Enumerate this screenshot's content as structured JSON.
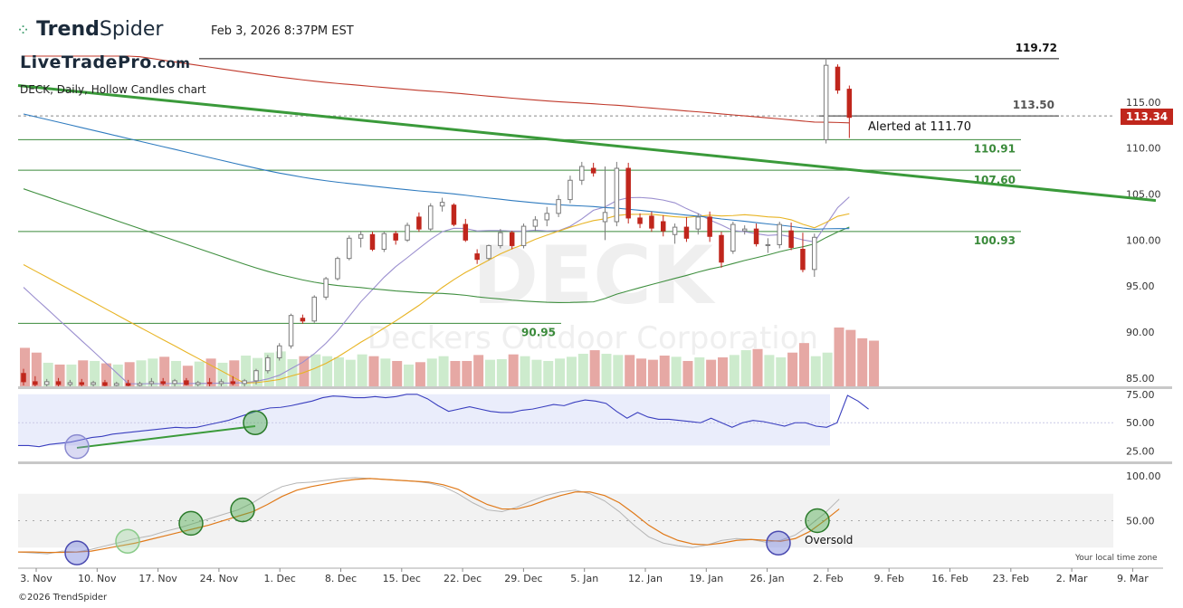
{
  "header": {
    "brand_prefix": "Trend",
    "brand_suffix": "Spider",
    "watermark_brand": "LiveTradePro",
    "watermark_domain": ".com",
    "datetime": "Feb 3, 2026 8:37PM EST",
    "chart_title": "DECK, Daily, Hollow Candles chart",
    "copyright": "©2026 TrendSpider",
    "local_time_note": "Your local time zone"
  },
  "annotations": {
    "alert_text": "Alerted at 111.70",
    "oversold_text": "Oversold",
    "current_price": "113.34",
    "current_price_color": "#c0261c"
  },
  "chart_data": {
    "type": "candlestick",
    "symbol": "DECK",
    "company": "Deckers Outdoor Corporation",
    "x_labels": [
      "3. Nov",
      "10. Nov",
      "17. Nov",
      "24. Nov",
      "1. Dec",
      "8. Dec",
      "15. Dec",
      "22. Dec",
      "29. Dec",
      "5. Jan",
      "12. Jan",
      "19. Jan",
      "26. Jan",
      "2. Feb",
      "9. Feb",
      "16. Feb",
      "23. Feb",
      "2. Mar",
      "9. Mar"
    ],
    "price_axis": {
      "ticks": [
        85,
        90,
        95,
        100,
        105,
        110,
        115
      ],
      "range": [
        84,
        120
      ]
    },
    "levels": [
      {
        "value": 119.72,
        "label": "119.72",
        "color": "#111111"
      },
      {
        "value": 113.5,
        "label": "113.50",
        "color": "#555555"
      },
      {
        "value": 110.91,
        "label": "110.91",
        "color": "#3a8a3a"
      },
      {
        "value": 107.6,
        "label": "107.60",
        "color": "#3a8a3a"
      },
      {
        "value": 100.93,
        "label": "100.93",
        "color": "#3a8a3a"
      },
      {
        "value": 90.95,
        "label": "90.95",
        "color": "#3a8a3a"
      }
    ],
    "candles_note": "open, high, low, close per trading day (approximate)",
    "candles": [
      [
        85.5,
        86.0,
        84.2,
        84.6
      ],
      [
        84.6,
        85.2,
        84.0,
        84.3
      ],
      [
        84.3,
        84.9,
        84.0,
        84.6
      ],
      [
        84.6,
        85.0,
        84.1,
        84.3
      ],
      [
        84.3,
        84.8,
        84.0,
        84.5
      ],
      [
        84.5,
        84.9,
        84.1,
        84.3
      ],
      [
        84.3,
        84.7,
        84.0,
        84.5
      ],
      [
        84.5,
        84.8,
        84.1,
        84.2
      ],
      [
        84.2,
        84.6,
        84.0,
        84.4
      ],
      [
        84.4,
        84.8,
        84.0,
        84.2
      ],
      [
        84.2,
        84.6,
        84.0,
        84.4
      ],
      [
        84.4,
        85.0,
        84.1,
        84.6
      ],
      [
        84.6,
        85.0,
        84.2,
        84.4
      ],
      [
        84.4,
        84.9,
        84.0,
        84.7
      ],
      [
        84.7,
        85.0,
        84.2,
        84.3
      ],
      [
        84.3,
        84.7,
        84.0,
        84.5
      ],
      [
        84.5,
        85.0,
        84.1,
        84.4
      ],
      [
        84.4,
        84.9,
        84.0,
        84.6
      ],
      [
        84.6,
        85.2,
        84.2,
        84.4
      ],
      [
        84.4,
        84.9,
        84.0,
        84.7
      ],
      [
        84.7,
        86.0,
        84.3,
        85.8
      ],
      [
        85.8,
        87.5,
        85.5,
        87.2
      ],
      [
        87.2,
        88.8,
        86.9,
        88.5
      ],
      [
        88.5,
        92.0,
        88.2,
        91.8
      ],
      [
        91.5,
        91.9,
        90.9,
        91.2
      ],
      [
        91.2,
        94.0,
        91.0,
        93.8
      ],
      [
        93.8,
        96.0,
        93.5,
        95.8
      ],
      [
        95.8,
        98.2,
        95.6,
        98.0
      ],
      [
        98.0,
        100.5,
        97.8,
        100.2
      ],
      [
        100.2,
        101.0,
        99.2,
        100.6
      ],
      [
        100.6,
        100.9,
        98.8,
        99.0
      ],
      [
        99.0,
        100.9,
        98.7,
        100.7
      ],
      [
        100.7,
        101.0,
        99.5,
        100.0
      ],
      [
        100.0,
        101.9,
        99.8,
        101.6
      ],
      [
        102.5,
        103.0,
        100.9,
        101.2
      ],
      [
        101.2,
        104.0,
        101.0,
        103.7
      ],
      [
        103.7,
        104.6,
        103.1,
        104.1
      ],
      [
        103.8,
        104.0,
        101.5,
        101.7
      ],
      [
        101.7,
        102.3,
        99.8,
        100.0
      ],
      [
        98.5,
        99.0,
        97.4,
        97.9
      ],
      [
        98.0,
        99.5,
        97.8,
        99.4
      ],
      [
        99.4,
        101.2,
        99.1,
        100.8
      ],
      [
        100.8,
        101.0,
        99.0,
        99.4
      ],
      [
        99.4,
        101.8,
        99.1,
        101.5
      ],
      [
        101.5,
        102.6,
        101.0,
        102.2
      ],
      [
        102.2,
        103.6,
        101.5,
        102.9
      ],
      [
        102.9,
        104.9,
        102.5,
        104.4
      ],
      [
        104.4,
        107.0,
        104.0,
        106.5
      ],
      [
        106.5,
        108.5,
        106.0,
        108.0
      ],
      [
        107.8,
        108.4,
        106.9,
        107.3
      ],
      [
        102.0,
        108.0,
        100.0,
        103.0
      ],
      [
        102.0,
        108.5,
        101.5,
        107.8
      ],
      [
        107.8,
        108.4,
        101.8,
        102.4
      ],
      [
        102.4,
        102.9,
        101.3,
        101.8
      ],
      [
        102.6,
        103.1,
        100.9,
        101.3
      ],
      [
        102.0,
        102.7,
        100.4,
        101.0
      ],
      [
        100.6,
        101.8,
        99.6,
        101.4
      ],
      [
        101.4,
        102.5,
        99.8,
        100.2
      ],
      [
        101.2,
        102.9,
        100.6,
        102.5
      ],
      [
        102.5,
        103.1,
        99.8,
        100.4
      ],
      [
        100.5,
        100.9,
        97.0,
        97.6
      ],
      [
        98.8,
        102.0,
        98.5,
        101.7
      ],
      [
        101.0,
        101.6,
        100.6,
        101.2
      ],
      [
        101.2,
        101.8,
        99.3,
        99.6
      ],
      [
        99.4,
        100.2,
        98.6,
        99.5
      ],
      [
        99.5,
        102.0,
        99.1,
        101.7
      ],
      [
        101.0,
        101.9,
        98.9,
        99.2
      ],
      [
        99.0,
        100.8,
        96.5,
        96.8
      ],
      [
        96.8,
        100.7,
        96.0,
        100.3
      ],
      [
        110.9,
        119.72,
        110.5,
        119.0
      ],
      [
        118.8,
        119.1,
        115.9,
        116.3
      ],
      [
        116.4,
        116.8,
        111.1,
        113.34
      ]
    ],
    "moving_averages": [
      {
        "name": "MA10",
        "color": "#9b8fcf"
      },
      {
        "name": "MA20",
        "color": "#e8b424"
      },
      {
        "name": "MA50",
        "color": "#3f8f3f"
      },
      {
        "name": "MA100",
        "color": "#2f7bbf"
      },
      {
        "name": "MA200",
        "color": "#c0392b"
      }
    ],
    "trendline": {
      "color": "#3a9a3a",
      "from": [
        0,
        116.8
      ],
      "to_future_value": 104.3
    },
    "volume_note": "relative volume bars (0-1)",
    "volume": [
      0.66,
      0.58,
      0.41,
      0.38,
      0.38,
      0.45,
      0.44,
      0.4,
      0.38,
      0.42,
      0.45,
      0.48,
      0.51,
      0.44,
      0.36,
      0.43,
      0.48,
      0.41,
      0.45,
      0.53,
      0.49,
      0.58,
      0.6,
      0.47,
      0.52,
      0.55,
      0.52,
      0.5,
      0.46,
      0.55,
      0.52,
      0.48,
      0.44,
      0.38,
      0.42,
      0.48,
      0.52,
      0.44,
      0.44,
      0.54,
      0.46,
      0.47,
      0.55,
      0.52,
      0.46,
      0.44,
      0.48,
      0.51,
      0.56,
      0.62,
      0.56,
      0.54,
      0.54,
      0.48,
      0.46,
      0.53,
      0.51,
      0.44,
      0.5,
      0.46,
      0.5,
      0.54,
      0.62,
      0.64,
      0.54,
      0.5,
      0.58,
      0.74,
      0.52,
      0.58,
      1.0,
      0.96,
      0.82,
      0.78
    ],
    "rsi": {
      "axis_ticks": [
        25.0,
        50.0,
        75.0
      ],
      "values": [
        30.0,
        30.0,
        29.0,
        31.0,
        32.0,
        33.0,
        35.0,
        37.0,
        38.0,
        40.0,
        41.0,
        42.0,
        43.0,
        44.0,
        45.0,
        46.0,
        45.5,
        46.0,
        48.0,
        50.0,
        52.0,
        55.0,
        58.0,
        61.0,
        63.0,
        63.5,
        65.0,
        67.0,
        69.0,
        72.0,
        73.5,
        73.0,
        72.0,
        72.0,
        73.0,
        72.0,
        73.0,
        75.0,
        75.0,
        71.0,
        65.0,
        60.0,
        62.0,
        64.0,
        62.0,
        60.0,
        59.0,
        59.0,
        61.0,
        62.0,
        64.0,
        66.0,
        65.0,
        68.0,
        70.0,
        69.0,
        67.0,
        60.0,
        54.0,
        59.0,
        55.0,
        53.0,
        53.0,
        52.0,
        51.0,
        50.0,
        54.0,
        50.0,
        46.0,
        50.0,
        52.0,
        51.0,
        49.0,
        47.0,
        50.0,
        50.0,
        47.0,
        46.0,
        50.0,
        74.0,
        69.0,
        62.0
      ]
    },
    "stochastic": {
      "axis_ticks": [
        50.0,
        100.0
      ],
      "k_values": [
        15.0,
        14.0,
        13.0,
        16.0,
        15.0,
        18.0,
        22.0,
        26.0,
        30.0,
        33.0,
        38.0,
        42.0,
        47.0,
        52.0,
        57.0,
        62.0,
        70.0,
        80.0,
        88.0,
        92.0,
        93.0,
        95.0,
        97.0,
        98.0,
        97.0,
        96.0,
        95.0,
        94.0,
        92.0,
        88.0,
        80.0,
        70.0,
        62.0,
        60.0,
        65.0,
        72.0,
        78.0,
        82.0,
        84.0,
        80.0,
        72.0,
        60.0,
        45.0,
        32.0,
        25.0,
        22.0,
        20.0,
        23.0,
        28.0,
        30.0,
        29.0,
        26.0,
        28.0,
        34.0,
        45.0,
        58.0,
        74.0
      ],
      "d_values": [
        15.0,
        15.0,
        14.5,
        14.6,
        15.0,
        16.0,
        19.0,
        22.0,
        25.0,
        29.0,
        33.0,
        37.0,
        41.0,
        45.0,
        50.0,
        55.0,
        60.0,
        68.0,
        77.0,
        84.0,
        88.0,
        91.0,
        94.0,
        96.0,
        97.0,
        96.0,
        95.0,
        94.0,
        93.0,
        90.0,
        85.0,
        76.0,
        68.0,
        63.0,
        63.0,
        67.0,
        73.0,
        78.0,
        82.0,
        82.0,
        78.0,
        70.0,
        58.0,
        45.0,
        35.0,
        28.0,
        24.0,
        23.0,
        25.0,
        28.0,
        29.0,
        28.0,
        27.0,
        30.0,
        38.0,
        50.0,
        63.0
      ]
    }
  }
}
